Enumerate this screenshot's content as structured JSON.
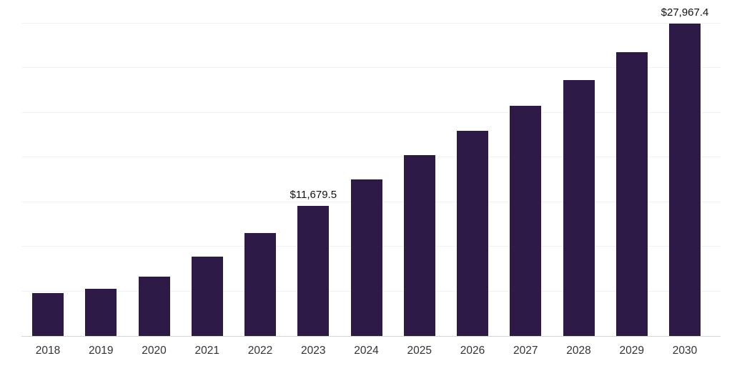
{
  "chart_data": {
    "type": "bar",
    "title": "",
    "xlabel": "",
    "ylabel": "",
    "categories": [
      "2018",
      "2019",
      "2020",
      "2021",
      "2022",
      "2023",
      "2024",
      "2025",
      "2026",
      "2027",
      "2028",
      "2029",
      "2030"
    ],
    "values": [
      3850,
      4200,
      5300,
      7100,
      9200,
      11679.5,
      14000,
      16200,
      18400,
      20600,
      22900,
      25400,
      27967.4
    ],
    "value_labels": {
      "2023": "$11,679.5",
      "2030": "$27,967.4"
    },
    "ylim": [
      0,
      28160
    ],
    "gridline_interval": 4000,
    "grid": true,
    "legend": "none",
    "bar_color": "#2e1a47"
  },
  "colors": {
    "background": "#ffffff",
    "bar": "#2e1a47",
    "gridline": "#f2f2f2",
    "axis_line": "#d4d4d4",
    "tick_label": "#333333",
    "value_label": "#111111"
  }
}
